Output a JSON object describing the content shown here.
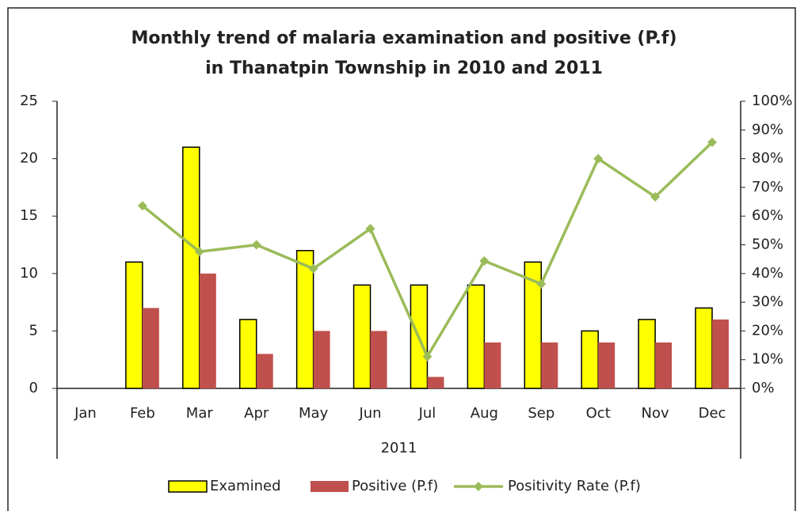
{
  "chart_data": {
    "type": "bar",
    "title": "Monthly trend of malaria examination and positive (P.f) in Thanatpin Township in 2010 and 2011",
    "categories": [
      "Jan",
      "Feb",
      "Mar",
      "Apr",
      "May",
      "Jun",
      "Jul",
      "Aug",
      "Sep",
      "Oct",
      "Nov",
      "Dec"
    ],
    "group_label": "2011",
    "series": [
      {
        "name": "Examined",
        "type": "bar",
        "color": "#ffff00",
        "values": [
          null,
          11,
          21,
          6,
          12,
          9,
          9,
          9,
          11,
          5,
          6,
          7
        ]
      },
      {
        "name": "Positive (P.f)",
        "type": "bar",
        "color": "#c0504d",
        "values": [
          null,
          7,
          10,
          3,
          5,
          5,
          1,
          4,
          4,
          4,
          4,
          6
        ]
      },
      {
        "name": "Positivity Rate (P.f)",
        "type": "line",
        "axis": "y2",
        "color": "#9bbb59",
        "values": [
          null,
          63.6,
          47.6,
          50,
          41.7,
          55.6,
          11.1,
          44.4,
          36.4,
          80,
          66.7,
          85.7
        ]
      }
    ],
    "ylim": [
      0,
      25
    ],
    "yticks": [
      0,
      5,
      10,
      15,
      20,
      25
    ],
    "y2lim": [
      0,
      100
    ],
    "y2ticks": [
      {
        "value": 0,
        "label": "0%"
      },
      {
        "value": 10,
        "label": "10%"
      },
      {
        "value": 20,
        "label": "20%"
      },
      {
        "value": 30,
        "label": "30%"
      },
      {
        "value": 40,
        "label": "40%"
      },
      {
        "value": 50,
        "label": "50%"
      },
      {
        "value": 60,
        "label": "60%"
      },
      {
        "value": 70,
        "label": "70%"
      },
      {
        "value": 80,
        "label": "80%"
      },
      {
        "value": 90,
        "label": "90%"
      },
      {
        "value": 100,
        "label": "100%"
      }
    ],
    "legend": "bottom",
    "grid": false
  }
}
